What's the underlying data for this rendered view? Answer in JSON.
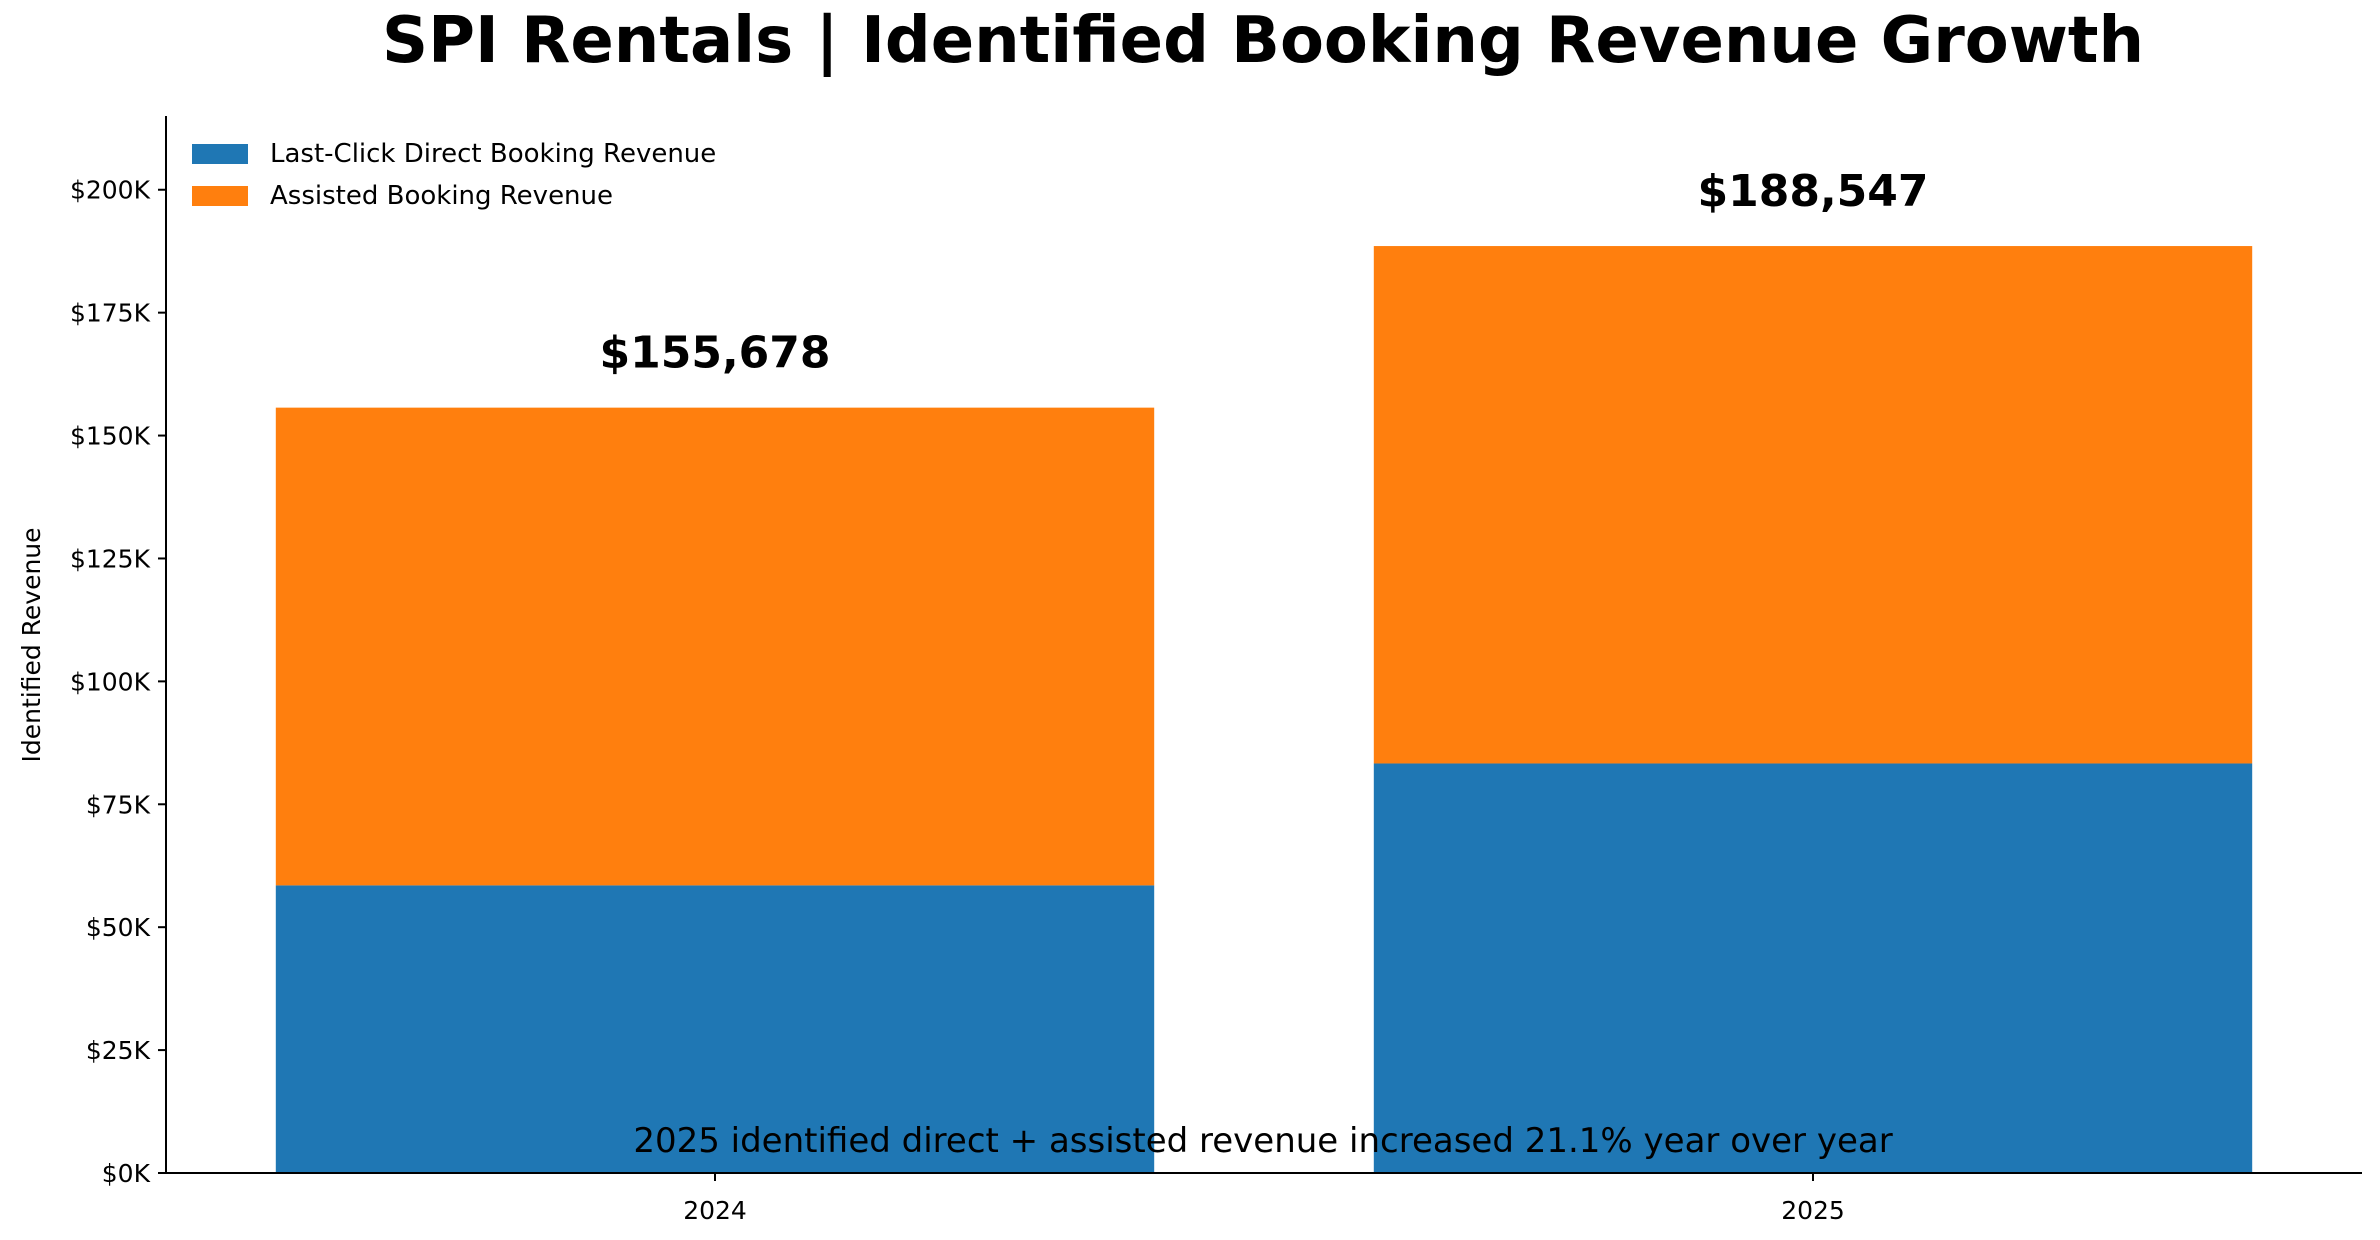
{
  "chart_data": {
    "type": "bar",
    "stacked": true,
    "title": "SPI Rentals | Identified Booking Revenue Growth",
    "xlabel": "",
    "ylabel": "Identified Revenue",
    "categories": [
      "2024",
      "2025"
    ],
    "series": [
      {
        "name": "Last-Click Direct Booking Revenue",
        "color": "#1f77b4",
        "values": [
          58500,
          83300
        ]
      },
      {
        "name": "Assisted Booking Revenue",
        "color": "#ff7f0e",
        "values": [
          97178,
          105247
        ]
      }
    ],
    "totals": [
      {
        "category": "2024",
        "label": "$155,678"
      },
      {
        "category": "2025",
        "label": "$188,547"
      }
    ],
    "ylim": [
      0,
      215000
    ],
    "yticks": [
      {
        "value": 0,
        "label": "$0K"
      },
      {
        "value": 25000,
        "label": "$25K"
      },
      {
        "value": 50000,
        "label": "$50K"
      },
      {
        "value": 75000,
        "label": "$75K"
      },
      {
        "value": 100000,
        "label": "$100K"
      },
      {
        "value": 125000,
        "label": "$125K"
      },
      {
        "value": 150000,
        "label": "$150K"
      },
      {
        "value": 175000,
        "label": "$175K"
      },
      {
        "value": 200000,
        "label": "$200K"
      }
    ],
    "annotation": "2025 identified direct + assisted revenue increased 21.1% year over year",
    "legend_position": "upper-left",
    "grid": false
  }
}
